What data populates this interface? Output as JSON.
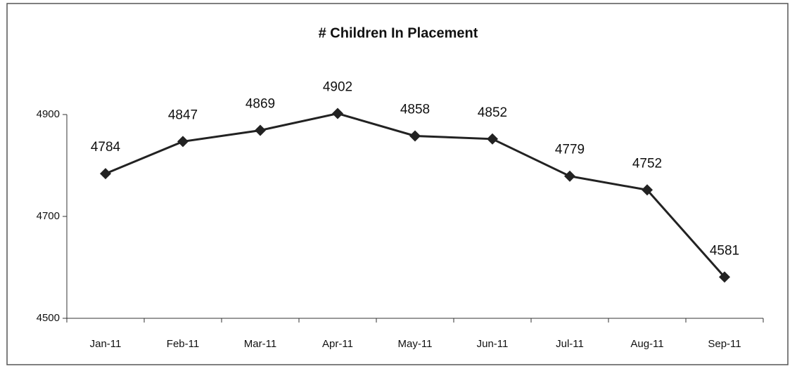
{
  "chart_data": {
    "type": "line",
    "title": "# Children In Placement",
    "categories": [
      "Jan-11",
      "Feb-11",
      "Mar-11",
      "Apr-11",
      "May-11",
      "Jun-11",
      "Jul-11",
      "Aug-11",
      "Sep-11"
    ],
    "values": [
      4784,
      4847,
      4869,
      4902,
      4858,
      4852,
      4779,
      4752,
      4581
    ],
    "color": "#222222",
    "ylim": [
      4500,
      4900
    ],
    "yticks": [
      4500,
      4700,
      4900
    ],
    "grid": false
  }
}
